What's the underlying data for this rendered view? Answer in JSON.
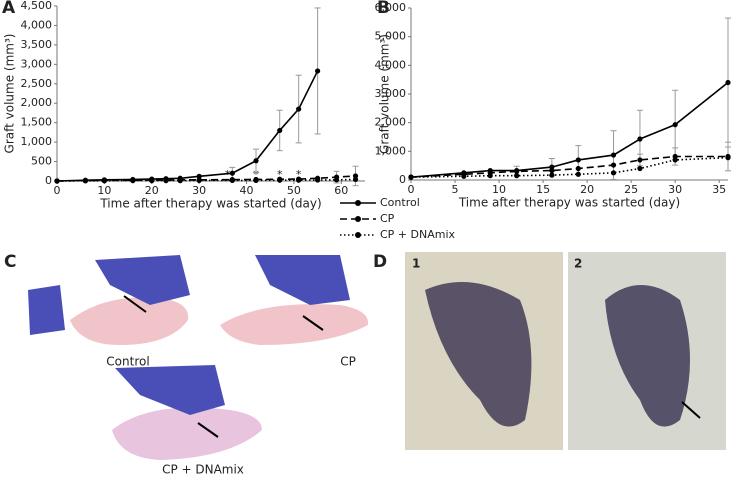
{
  "chart_data": [
    {
      "type": "line",
      "panel": "A",
      "ylabel": "Graft volume (mm³)",
      "xlabel": "Time after therapy was started (day)",
      "xlim": [
        0,
        65
      ],
      "xticks": [
        0,
        10,
        20,
        30,
        40,
        50,
        60
      ],
      "ylim": [
        0,
        4500
      ],
      "yticks": [
        0,
        500,
        {
          "value": 1000,
          "label": "1,000"
        },
        {
          "value": 1500,
          "label": "1,500"
        },
        {
          "value": 2000,
          "label": "2,000"
        },
        {
          "value": 2500,
          "label": "2,500"
        },
        {
          "value": 3000,
          "label": "3,000"
        },
        {
          "value": 3500,
          "label": "3,500"
        },
        {
          "value": 4000,
          "label": "4,000"
        },
        {
          "value": 4500,
          "label": "4,500"
        }
      ],
      "annotations": [
        {
          "text": "*",
          "x": 36
        },
        {
          "text": "*",
          "x": 42
        },
        {
          "text": "*",
          "x": 47
        },
        {
          "text": "*",
          "x": 51
        }
      ],
      "series": [
        {
          "color": "#000000",
          "line_style": "solid",
          "x": [
            0,
            6,
            10,
            16,
            20,
            23,
            26,
            30,
            37,
            42,
            47,
            51,
            55
          ],
          "values": [
            0,
            20,
            30,
            40,
            50,
            60,
            70,
            120,
            200,
            520,
            1300,
            1850,
            2830
          ],
          "errors": [
            null,
            null,
            null,
            null,
            null,
            null,
            null,
            null,
            150,
            300,
            520,
            870,
            1620
          ]
        },
        {
          "color": "#000000",
          "line_style": "dashed",
          "x": [
            0,
            6,
            10,
            16,
            20,
            23,
            26,
            30,
            37,
            42,
            47,
            51,
            55,
            59,
            63
          ],
          "values": [
            0,
            10,
            15,
            20,
            25,
            25,
            30,
            30,
            35,
            40,
            45,
            50,
            70,
            100,
            130
          ],
          "errors": [
            null,
            null,
            null,
            null,
            null,
            null,
            null,
            null,
            null,
            null,
            null,
            null,
            null,
            150,
            250
          ]
        },
        {
          "color": "#000000",
          "line_style": "dotted",
          "x": [
            0,
            6,
            10,
            16,
            20,
            23,
            26,
            30,
            37,
            42,
            47,
            51,
            55,
            59,
            63
          ],
          "values": [
            0,
            5,
            5,
            10,
            10,
            10,
            10,
            15,
            15,
            15,
            20,
            20,
            25,
            30,
            40
          ],
          "errors": [
            null,
            null,
            null,
            null,
            null,
            null,
            null,
            null,
            null,
            null,
            null,
            null,
            null,
            null,
            null
          ]
        }
      ]
    },
    {
      "type": "line",
      "panel": "B",
      "ylabel": "Graft volume (mm³)",
      "xlabel": "Time after therapy was started (day)",
      "xlim": [
        0,
        36
      ],
      "xticks": [
        0,
        5,
        10,
        15,
        20,
        25,
        30,
        35
      ],
      "ylim": [
        0,
        6000
      ],
      "yticks": [
        0,
        {
          "value": 1000,
          "label": "1,000"
        },
        {
          "value": 2000,
          "label": "2,000"
        },
        {
          "value": 3000,
          "label": "3,000"
        },
        {
          "value": 4000,
          "label": "4,000"
        },
        {
          "value": 5000,
          "label": "5,000"
        },
        {
          "value": 6000,
          "label": "6,000"
        }
      ],
      "series": [
        {
          "name": "Control",
          "color": "#000000",
          "line_style": "solid",
          "x": [
            0,
            6,
            9,
            12,
            16,
            19,
            23,
            26,
            30,
            36
          ],
          "values": [
            100,
            250,
            330,
            330,
            450,
            700,
            870,
            1430,
            1930,
            3400
          ],
          "errors": [
            null,
            null,
            null,
            150,
            300,
            500,
            850,
            1000,
            1200,
            2250
          ]
        },
        {
          "name": "CP",
          "color": "#000000",
          "line_style": "dashed",
          "x": [
            0,
            6,
            9,
            12,
            16,
            19,
            23,
            26,
            30,
            36
          ],
          "values": [
            100,
            200,
            250,
            300,
            330,
            400,
            520,
            700,
            820,
            820
          ],
          "errors": [
            null,
            null,
            null,
            null,
            null,
            null,
            null,
            200,
            300,
            500
          ]
        },
        {
          "name": "CP + DNAmix",
          "color": "#000000",
          "line_style": "dotted",
          "x": [
            0,
            6,
            9,
            12,
            16,
            19,
            23,
            26,
            30,
            36
          ],
          "values": [
            100,
            130,
            150,
            150,
            170,
            200,
            250,
            400,
            700,
            780
          ],
          "errors": [
            null,
            null,
            null,
            null,
            null,
            null,
            null,
            null,
            null,
            null
          ]
        }
      ]
    }
  ],
  "photos": {
    "panel_c": "C",
    "panel_d": "D",
    "captions": [
      "Control",
      "CP",
      "CP + DNAmix"
    ],
    "d_labels": [
      "1",
      "2"
    ]
  }
}
